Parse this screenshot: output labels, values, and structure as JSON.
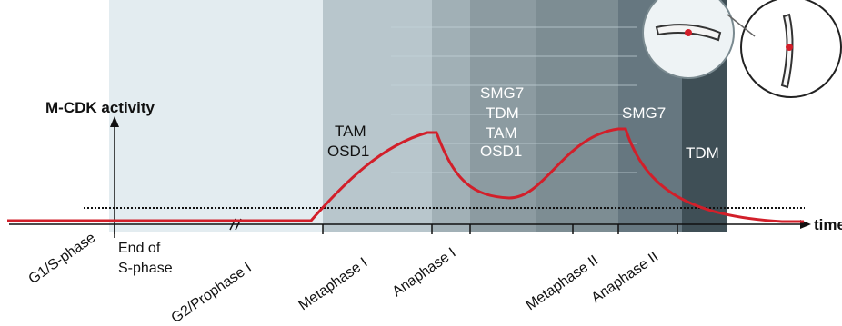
{
  "y_axis_label": "M-CDK activity",
  "x_axis_label": "time",
  "time_markers": {
    "end_of_s_phase_line1": "End of",
    "end_of_s_phase_line2": "S-phase"
  },
  "phase_labels": [
    "G1/S-phase",
    "G2/Prophase I",
    "Metaphase I",
    "Anaphase I",
    "Metaphase II",
    "Anaphase II"
  ],
  "regulator_groups": {
    "metaphase1": [
      "TAM",
      "OSD1"
    ],
    "anaphase1_metaphase2": [
      "SMG7",
      "TDM",
      "TAM",
      "OSD1"
    ],
    "anaphase2": [
      "SMG7"
    ],
    "late": [
      "TDM"
    ]
  },
  "colors": {
    "curve": "#d21f2a",
    "band1": "#dfe9ee",
    "band2": "#c7d6dc",
    "band3": "#a5b4ba",
    "band4": "#8e9ea4",
    "band5": "#7b8b91",
    "band6": "#677880",
    "band7": "#52636a",
    "band8": "#3d4c53"
  }
}
